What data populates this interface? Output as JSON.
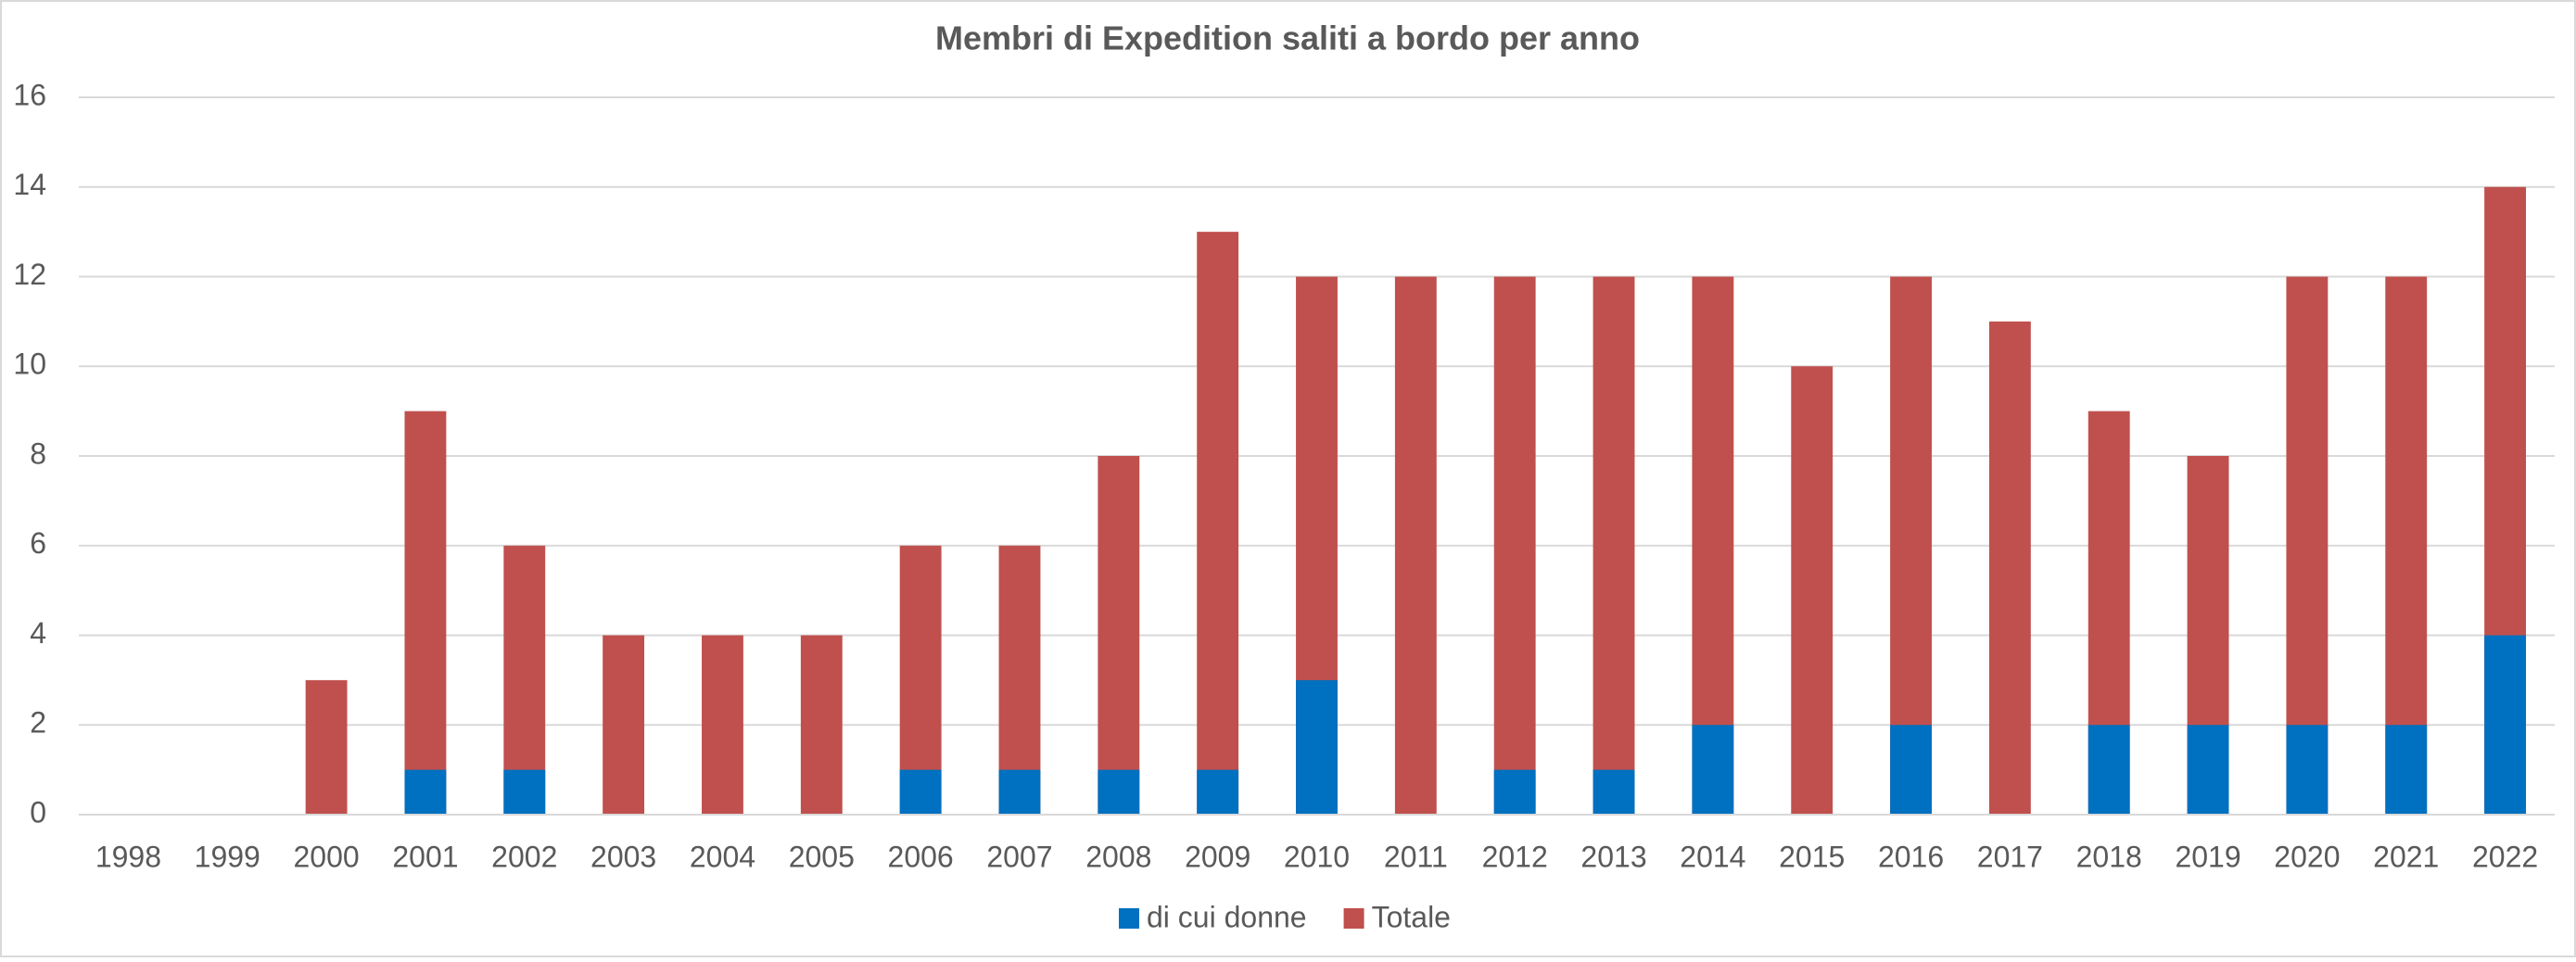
{
  "chart_data": {
    "type": "bar",
    "title": "Membri di Expedition saliti a bordo per anno",
    "categories": [
      "1998",
      "1999",
      "2000",
      "2001",
      "2002",
      "2003",
      "2004",
      "2005",
      "2006",
      "2007",
      "2008",
      "2009",
      "2010",
      "2011",
      "2012",
      "2013",
      "2014",
      "2015",
      "2016",
      "2017",
      "2018",
      "2019",
      "2020",
      "2021",
      "2022"
    ],
    "series": [
      {
        "name": "di cui donne",
        "color": "#0070c0",
        "values": [
          0,
          0,
          0,
          1,
          1,
          0,
          0,
          0,
          1,
          1,
          1,
          1,
          3,
          0,
          1,
          1,
          2,
          0,
          2,
          0,
          2,
          2,
          2,
          2,
          4
        ]
      },
      {
        "name": "Totale",
        "color": "#c0504d",
        "values": [
          0,
          0,
          3,
          9,
          6,
          4,
          4,
          4,
          6,
          6,
          8,
          13,
          12,
          12,
          12,
          12,
          12,
          10,
          12,
          11,
          9,
          8,
          12,
          12,
          14
        ]
      }
    ],
    "ylim": [
      0,
      16
    ],
    "yticks": [
      0,
      2,
      4,
      6,
      8,
      10,
      12,
      14,
      16
    ],
    "grid": true,
    "legend": "bottom"
  }
}
